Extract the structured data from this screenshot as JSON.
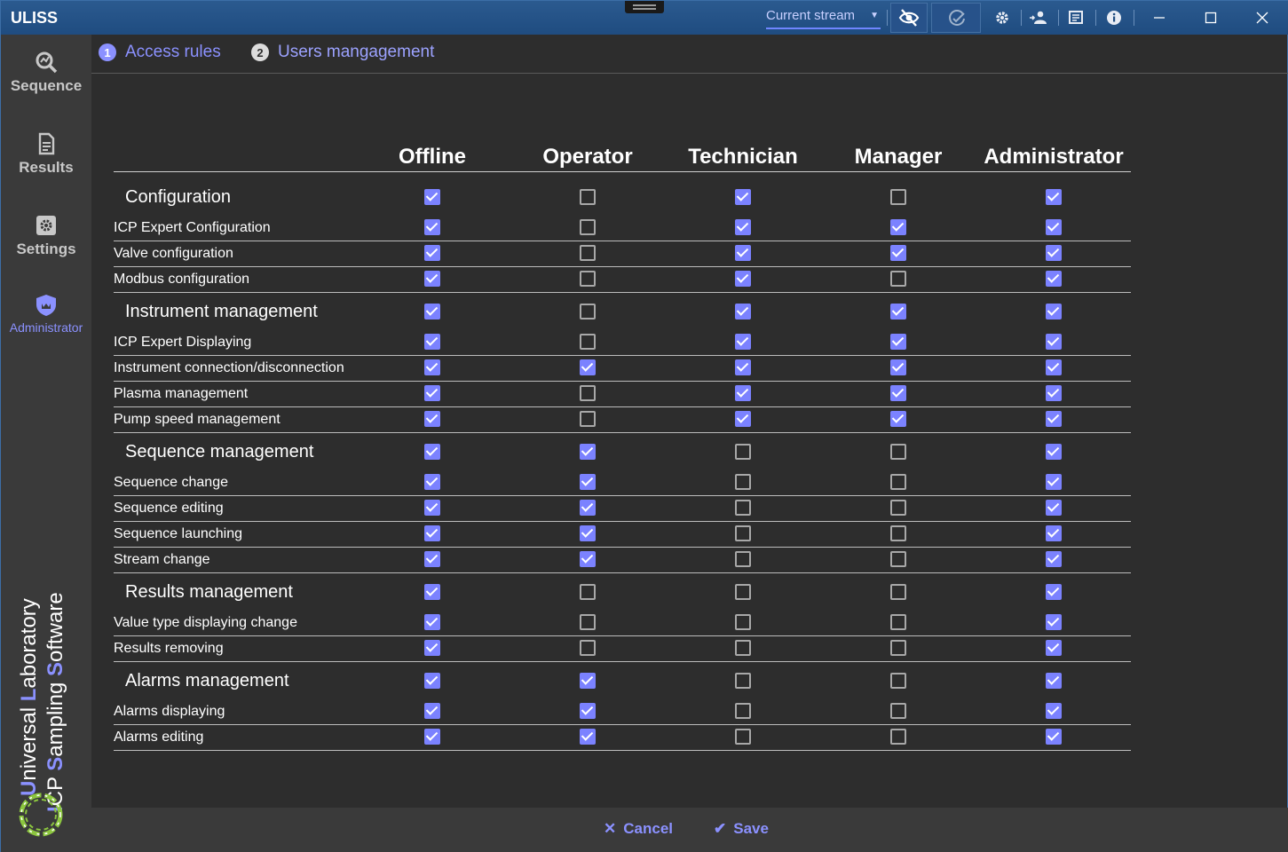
{
  "app": {
    "title": "ULISS"
  },
  "titlebar": {
    "stream_select": "Current stream",
    "icons": [
      "eye-off-icon",
      "check-circle-icon",
      "gear-icon",
      "users-icon",
      "notes-icon",
      "info-icon",
      "minimize-icon",
      "maximize-icon",
      "close-icon"
    ]
  },
  "sidebar": {
    "items": [
      {
        "label": "Sequence",
        "icon": "search-chart-icon"
      },
      {
        "label": "Results",
        "icon": "document-icon"
      },
      {
        "label": "Settings",
        "icon": "settings-icon"
      },
      {
        "label": "Administrator",
        "icon": "shield-icon"
      }
    ],
    "brand": {
      "line1": [
        {
          "initial": "U",
          "rest": "niversal "
        },
        {
          "initial": "L",
          "rest": "aboratory"
        }
      ],
      "line2": [
        {
          "initial": "I",
          "rest": "CP "
        },
        {
          "initial": "S",
          "rest": "ampling "
        },
        {
          "initial": "S",
          "rest": "oftware"
        }
      ]
    }
  },
  "tabs": [
    {
      "num": "1",
      "label": "Access rules"
    },
    {
      "num": "2",
      "label": "Users mangagement"
    }
  ],
  "matrix": {
    "roles": [
      "Offline",
      "Operator",
      "Technician",
      "Manager",
      "Administrator"
    ],
    "rows": [
      {
        "type": "group",
        "label": "Configuration",
        "values": [
          1,
          0,
          1,
          0,
          1
        ]
      },
      {
        "type": "perm",
        "label": "ICP Expert Configuration",
        "values": [
          1,
          0,
          1,
          1,
          1
        ]
      },
      {
        "type": "perm",
        "label": "Valve configuration",
        "values": [
          1,
          0,
          1,
          1,
          1
        ]
      },
      {
        "type": "perm",
        "label": "Modbus configuration",
        "values": [
          1,
          0,
          1,
          0,
          1
        ]
      },
      {
        "type": "group",
        "label": "Instrument management",
        "values": [
          1,
          0,
          1,
          1,
          1
        ]
      },
      {
        "type": "perm",
        "label": "ICP Expert Displaying",
        "values": [
          1,
          0,
          1,
          1,
          1
        ]
      },
      {
        "type": "perm",
        "label": "Instrument connection/disconnection",
        "values": [
          1,
          1,
          1,
          1,
          1
        ]
      },
      {
        "type": "perm",
        "label": "Plasma management",
        "values": [
          1,
          0,
          1,
          1,
          1
        ]
      },
      {
        "type": "perm",
        "label": "Pump speed management",
        "values": [
          1,
          0,
          1,
          1,
          1
        ]
      },
      {
        "type": "group",
        "label": "Sequence management",
        "values": [
          1,
          1,
          0,
          0,
          1
        ]
      },
      {
        "type": "perm",
        "label": "Sequence change",
        "values": [
          1,
          1,
          0,
          0,
          1
        ]
      },
      {
        "type": "perm",
        "label": "Sequence editing",
        "values": [
          1,
          1,
          0,
          0,
          1
        ]
      },
      {
        "type": "perm",
        "label": "Sequence launching",
        "values": [
          1,
          1,
          0,
          0,
          1
        ]
      },
      {
        "type": "perm",
        "label": "Stream change",
        "values": [
          1,
          1,
          0,
          0,
          1
        ]
      },
      {
        "type": "group",
        "label": "Results management",
        "values": [
          1,
          0,
          0,
          0,
          1
        ]
      },
      {
        "type": "perm",
        "label": "Value type displaying change",
        "values": [
          1,
          0,
          0,
          0,
          1
        ]
      },
      {
        "type": "perm",
        "label": "Results removing",
        "values": [
          1,
          0,
          0,
          0,
          1
        ]
      },
      {
        "type": "group",
        "label": "Alarms management",
        "values": [
          1,
          1,
          0,
          0,
          1
        ]
      },
      {
        "type": "perm",
        "label": "Alarms displaying",
        "values": [
          1,
          1,
          0,
          0,
          1
        ]
      },
      {
        "type": "perm",
        "label": "Alarms editing",
        "values": [
          1,
          1,
          0,
          0,
          1
        ]
      }
    ]
  },
  "footer": {
    "cancel_label": "Cancel",
    "save_label": "Save"
  },
  "colors": {
    "accent": "#7b82ff",
    "titlebar": "#1f4c80",
    "background": "#2d2d2d",
    "sidebar": "#3a3a3a"
  }
}
